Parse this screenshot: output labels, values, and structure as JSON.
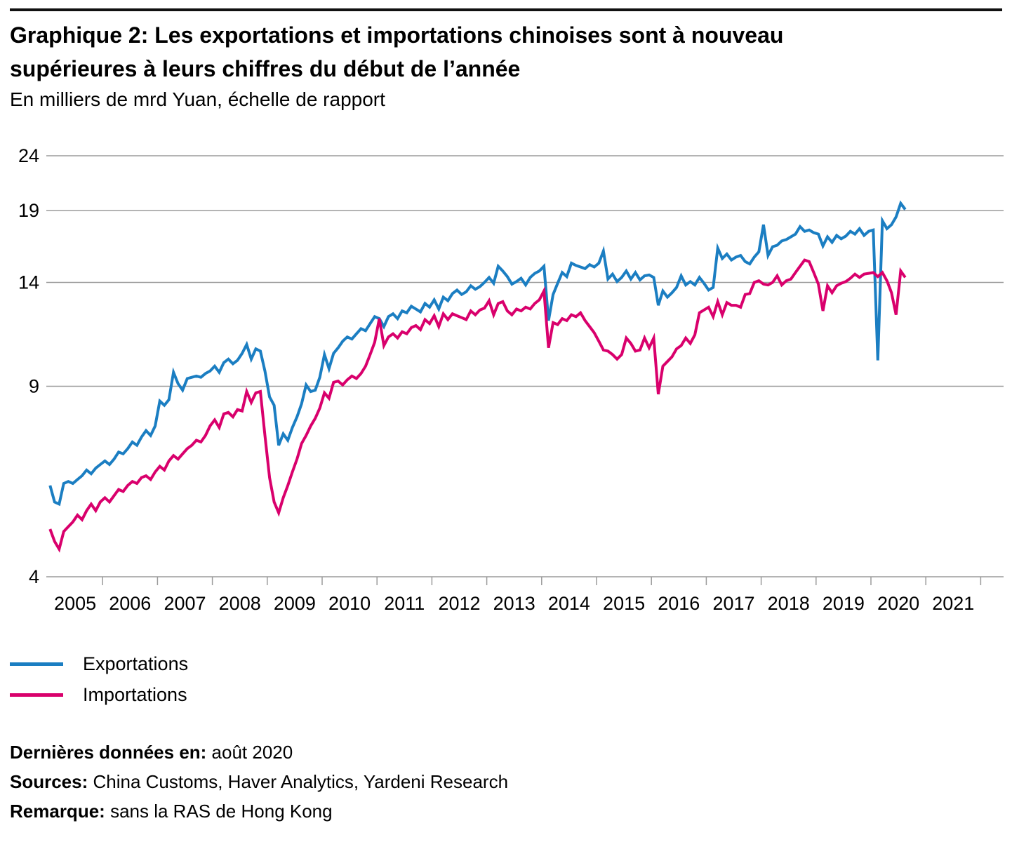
{
  "header": {
    "title_line1": "Graphique 2: Les exportations et importations chinoises sont à nouveau",
    "title_line2": "supérieures à leurs chiffres du début de l’année",
    "subtitle": "En milliers de mrd Yuan, échelle de rapport"
  },
  "legend": {
    "items": [
      {
        "label": "Exportations",
        "color": "#1b7ec2"
      },
      {
        "label": "Importations",
        "color": "#d9006c"
      }
    ]
  },
  "footer": {
    "last_label": "Dernières données en:",
    "last_value": "août 2020",
    "sources_label": "Sources:",
    "sources_value": "China Customs, Haver Analytics, Yardeni Research",
    "note_label": "Remarque:",
    "note_value": "sans la RAS de Hong Kong"
  },
  "chart_data": {
    "type": "line",
    "title": "Les exportations et importations chinoises sont à nouveau supérieures à leurs chiffres du début de l’année",
    "unit": "milliers de mrd Yuan",
    "yscale": "log (échelle de rapport)",
    "grid": true,
    "legend_position": "bottom-left",
    "ylim": [
      4,
      24
    ],
    "y_ticks": [
      24,
      19,
      14,
      9,
      4
    ],
    "x_ticks": [
      2005,
      2006,
      2007,
      2008,
      2009,
      2010,
      2011,
      2012,
      2013,
      2014,
      2015,
      2016,
      2017,
      2018,
      2019,
      2020,
      2021
    ],
    "frequency": "monthly",
    "start": "2005-01",
    "end": "2020-08",
    "series": [
      {
        "name": "Exportations",
        "color": "#1b7ec2",
        "values": [
          5.9,
          5.5,
          5.45,
          5.95,
          6.0,
          5.95,
          6.05,
          6.15,
          6.3,
          6.2,
          6.35,
          6.45,
          6.55,
          6.45,
          6.6,
          6.8,
          6.75,
          6.9,
          7.1,
          7.0,
          7.25,
          7.45,
          7.3,
          7.6,
          8.45,
          8.3,
          8.5,
          9.55,
          9.1,
          8.85,
          9.3,
          9.35,
          9.4,
          9.35,
          9.5,
          9.6,
          9.8,
          9.55,
          9.95,
          10.1,
          9.9,
          10.05,
          10.35,
          10.75,
          10.1,
          10.55,
          10.45,
          9.6,
          8.6,
          8.3,
          7.0,
          7.35,
          7.15,
          7.55,
          7.9,
          8.35,
          9.05,
          8.8,
          8.85,
          9.35,
          10.3,
          9.7,
          10.35,
          10.6,
          10.9,
          11.1,
          11.0,
          11.25,
          11.5,
          11.4,
          11.75,
          12.1,
          12.0,
          11.6,
          12.1,
          12.25,
          12.0,
          12.4,
          12.3,
          12.65,
          12.5,
          12.35,
          12.8,
          12.6,
          13.0,
          12.5,
          13.15,
          12.95,
          13.35,
          13.55,
          13.3,
          13.45,
          13.8,
          13.6,
          13.75,
          14.0,
          14.3,
          13.95,
          15.0,
          14.7,
          14.35,
          13.9,
          14.05,
          14.25,
          13.85,
          14.3,
          14.55,
          14.7,
          15.0,
          11.9,
          13.3,
          13.95,
          14.6,
          14.35,
          15.2,
          15.05,
          14.95,
          14.85,
          15.1,
          14.95,
          15.2,
          16.0,
          14.2,
          14.5,
          14.05,
          14.3,
          14.7,
          14.2,
          14.6,
          14.15,
          14.4,
          14.45,
          14.3,
          12.7,
          13.5,
          13.15,
          13.4,
          13.7,
          14.4,
          13.85,
          14.05,
          13.85,
          14.3,
          13.95,
          13.55,
          13.7,
          16.2,
          15.5,
          15.8,
          15.4,
          15.6,
          15.7,
          15.3,
          15.15,
          15.6,
          15.95,
          17.9,
          15.7,
          16.3,
          16.4,
          16.7,
          16.8,
          17.0,
          17.2,
          17.75,
          17.4,
          17.5,
          17.3,
          17.2,
          16.35,
          17.0,
          16.6,
          17.1,
          16.85,
          17.05,
          17.4,
          17.2,
          17.6,
          17.1,
          17.4,
          17.5,
          10.05,
          18.2,
          17.6,
          17.9,
          18.5,
          19.6,
          19.1
        ]
      },
      {
        "name": "Importations",
        "color": "#d9006c",
        "values": [
          4.9,
          4.65,
          4.5,
          4.85,
          4.95,
          5.05,
          5.2,
          5.1,
          5.3,
          5.45,
          5.3,
          5.5,
          5.6,
          5.5,
          5.65,
          5.8,
          5.75,
          5.9,
          6.0,
          5.95,
          6.1,
          6.15,
          6.05,
          6.25,
          6.4,
          6.3,
          6.55,
          6.7,
          6.6,
          6.75,
          6.9,
          7.0,
          7.15,
          7.1,
          7.3,
          7.6,
          7.8,
          7.55,
          8.0,
          8.05,
          7.9,
          8.15,
          8.1,
          8.8,
          8.4,
          8.75,
          8.8,
          7.3,
          6.1,
          5.5,
          5.25,
          5.6,
          5.9,
          6.25,
          6.6,
          7.05,
          7.3,
          7.6,
          7.85,
          8.2,
          8.75,
          8.55,
          9.15,
          9.2,
          9.05,
          9.25,
          9.4,
          9.3,
          9.5,
          9.8,
          10.3,
          10.85,
          12.0,
          10.7,
          11.1,
          11.25,
          11.05,
          11.35,
          11.25,
          11.55,
          11.65,
          11.45,
          11.95,
          11.75,
          12.15,
          11.6,
          12.25,
          11.95,
          12.25,
          12.15,
          12.05,
          11.95,
          12.4,
          12.2,
          12.45,
          12.55,
          12.95,
          12.2,
          12.8,
          12.9,
          12.4,
          12.2,
          12.5,
          12.4,
          12.6,
          12.5,
          12.8,
          13.0,
          13.5,
          10.6,
          11.8,
          11.7,
          12.0,
          11.9,
          12.2,
          12.1,
          12.3,
          11.9,
          11.6,
          11.3,
          10.9,
          10.5,
          10.45,
          10.3,
          10.1,
          10.3,
          11.05,
          10.8,
          10.45,
          10.5,
          11.05,
          10.6,
          11.05,
          8.7,
          9.8,
          10.0,
          10.2,
          10.55,
          10.7,
          11.05,
          10.8,
          11.2,
          12.3,
          12.45,
          12.6,
          12.1,
          12.9,
          12.2,
          12.85,
          12.7,
          12.7,
          12.6,
          13.3,
          13.35,
          14.0,
          14.1,
          13.9,
          13.85,
          14.0,
          14.4,
          13.85,
          14.1,
          14.2,
          14.6,
          15.0,
          15.4,
          15.3,
          14.6,
          13.9,
          12.4,
          13.8,
          13.4,
          13.8,
          13.95,
          14.05,
          14.25,
          14.5,
          14.3,
          14.5,
          14.55,
          14.6,
          14.35,
          14.6,
          14.1,
          13.4,
          12.2,
          14.7,
          14.3
        ]
      }
    ]
  }
}
